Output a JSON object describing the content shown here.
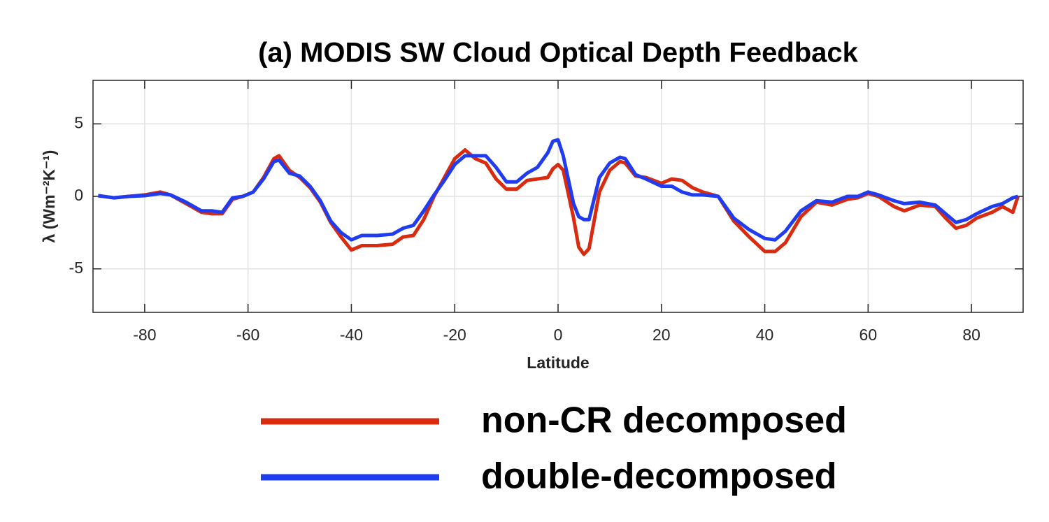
{
  "chart_data": {
    "type": "line",
    "title": "(a) MODIS SW Cloud Optical Depth Feedback",
    "x_label": "Latitude",
    "y_label": "λ (Wm⁻²K⁻¹)",
    "x": [
      -89,
      -86,
      -83,
      -80,
      -77,
      -75,
      -72,
      -69,
      -67,
      -65,
      -63,
      -61,
      -59,
      -57,
      -55,
      -54,
      -52,
      -50,
      -48,
      -46,
      -44,
      -42,
      -40,
      -38,
      -35,
      -32,
      -30,
      -28,
      -26,
      -24,
      -22,
      -20,
      -18,
      -16,
      -14,
      -12,
      -10,
      -8,
      -6,
      -4,
      -2,
      -1,
      0,
      1,
      3,
      4,
      5,
      6,
      8,
      10,
      12,
      13,
      15,
      17,
      20,
      22,
      24,
      26,
      28,
      31,
      34,
      37,
      40,
      42,
      44,
      47,
      50,
      53,
      56,
      58,
      60,
      62,
      65,
      67,
      70,
      73,
      75,
      77,
      79,
      81,
      84,
      86,
      88,
      89
    ],
    "series": [
      {
        "name": "non-CR decomposed",
        "color": "#d92b10",
        "values": [
          0.05,
          -0.1,
          0,
          0.1,
          0.3,
          0.1,
          -0.5,
          -1.1,
          -1.2,
          -1.2,
          -0.2,
          0,
          0.3,
          1.3,
          2.6,
          2.8,
          1.8,
          1.3,
          0.6,
          -0.4,
          -1.8,
          -2.8,
          -3.7,
          -3.4,
          -3.4,
          -3.3,
          -2.8,
          -2.7,
          -1.6,
          0,
          1.3,
          2.6,
          3.2,
          2.6,
          2.3,
          1.2,
          0.5,
          0.5,
          1.1,
          1.2,
          1.3,
          1.9,
          2.2,
          1.8,
          -1.5,
          -3.5,
          -4.0,
          -3.6,
          0.3,
          1.8,
          2.4,
          2.3,
          1.4,
          1.3,
          0.9,
          1.2,
          1.1,
          0.6,
          0.3,
          0,
          -1.7,
          -2.8,
          -3.8,
          -3.8,
          -3.2,
          -1.4,
          -0.4,
          -0.6,
          -0.2,
          -0.1,
          0.2,
          0,
          -0.7,
          -1.0,
          -0.6,
          -0.7,
          -1.5,
          -2.2,
          -2.0,
          -1.5,
          -1.1,
          -0.7,
          -1.1,
          0
        ]
      },
      {
        "name": "double-decomposed",
        "color": "#1f3cf0",
        "values": [
          0.05,
          -0.1,
          0,
          0.05,
          0.2,
          0.1,
          -0.4,
          -1.0,
          -1.0,
          -1.1,
          -0.1,
          0,
          0.3,
          1.2,
          2.4,
          2.5,
          1.6,
          1.4,
          0.7,
          -0.3,
          -1.7,
          -2.5,
          -3.0,
          -2.7,
          -2.7,
          -2.6,
          -2.2,
          -2.0,
          -1.0,
          0.1,
          1.1,
          2.2,
          2.8,
          2.8,
          2.8,
          2.0,
          1.0,
          1.0,
          1.6,
          2.0,
          3.0,
          3.8,
          3.9,
          2.8,
          -0.5,
          -1.4,
          -1.6,
          -1.6,
          1.3,
          2.3,
          2.7,
          2.6,
          1.5,
          1.2,
          0.7,
          0.7,
          0.3,
          0.1,
          0.1,
          0,
          -1.5,
          -2.3,
          -2.9,
          -3.0,
          -2.4,
          -1.0,
          -0.3,
          -0.4,
          0,
          0,
          0.3,
          0.1,
          -0.3,
          -0.5,
          -0.4,
          -0.6,
          -1.2,
          -1.8,
          -1.6,
          -1.2,
          -0.7,
          -0.5,
          -0.1,
          0
        ]
      }
    ],
    "xlim": [
      -90,
      90
    ],
    "xticks": [
      -80,
      -60,
      -40,
      -20,
      0,
      20,
      40,
      60,
      80
    ],
    "ylim": [
      -8,
      8
    ],
    "yticks": [
      -5,
      0,
      5
    ],
    "grid": true
  }
}
